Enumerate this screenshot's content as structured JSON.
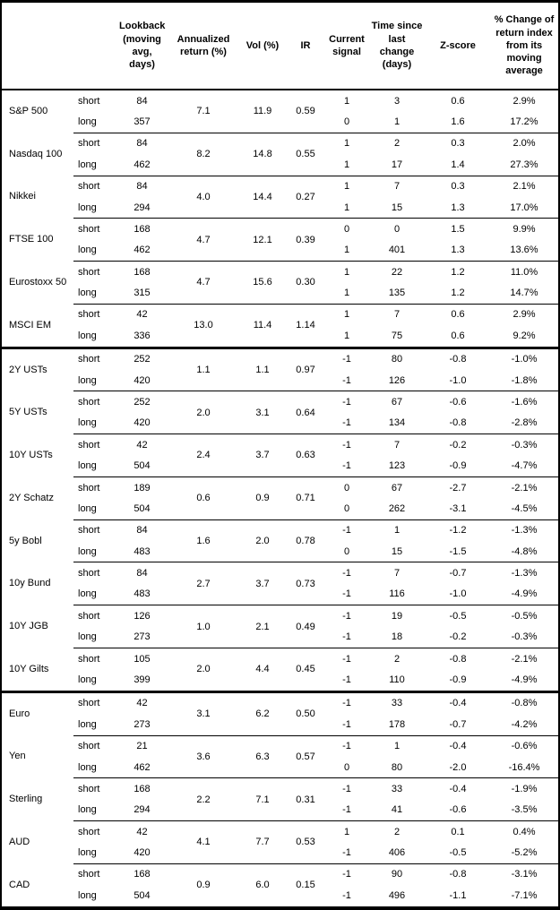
{
  "colors": {
    "background": "#ffffff",
    "text": "#000000",
    "border": "#000000"
  },
  "chart_data": {
    "type": "table",
    "headers": [
      "",
      "",
      "Lookback (moving avg, days)",
      "Annualized return (%)",
      "Vol (%)",
      "IR",
      "Current signal",
      "Time since last change (days)",
      "Z-score",
      "% Change of return index from its moving average"
    ],
    "horizon_labels": {
      "short": "short",
      "long": "long"
    },
    "sections": [
      {
        "assets": [
          {
            "name": "S&P 500",
            "annualized": "7.1",
            "vol": "11.9",
            "ir": "0.59",
            "short": {
              "lookback": "84",
              "signal": "1",
              "time": "3",
              "zscore": "0.6",
              "pct": "2.9%"
            },
            "long": {
              "lookback": "357",
              "signal": "0",
              "time": "1",
              "zscore": "1.6",
              "pct": "17.2%"
            }
          },
          {
            "name": "Nasdaq 100",
            "annualized": "8.2",
            "vol": "14.8",
            "ir": "0.55",
            "short": {
              "lookback": "84",
              "signal": "1",
              "time": "2",
              "zscore": "0.3",
              "pct": "2.0%"
            },
            "long": {
              "lookback": "462",
              "signal": "1",
              "time": "17",
              "zscore": "1.4",
              "pct": "27.3%"
            }
          },
          {
            "name": "Nikkei",
            "annualized": "4.0",
            "vol": "14.4",
            "ir": "0.27",
            "short": {
              "lookback": "84",
              "signal": "1",
              "time": "7",
              "zscore": "0.3",
              "pct": "2.1%"
            },
            "long": {
              "lookback": "294",
              "signal": "1",
              "time": "15",
              "zscore": "1.3",
              "pct": "17.0%"
            }
          },
          {
            "name": "FTSE 100",
            "annualized": "4.7",
            "vol": "12.1",
            "ir": "0.39",
            "short": {
              "lookback": "168",
              "signal": "0",
              "time": "0",
              "zscore": "1.5",
              "pct": "9.9%"
            },
            "long": {
              "lookback": "462",
              "signal": "1",
              "time": "401",
              "zscore": "1.3",
              "pct": "13.6%"
            }
          },
          {
            "name": "Eurostoxx 50",
            "annualized": "4.7",
            "vol": "15.6",
            "ir": "0.30",
            "short": {
              "lookback": "168",
              "signal": "1",
              "time": "22",
              "zscore": "1.2",
              "pct": "11.0%"
            },
            "long": {
              "lookback": "315",
              "signal": "1",
              "time": "135",
              "zscore": "1.2",
              "pct": "14.7%"
            }
          },
          {
            "name": "MSCI EM",
            "annualized": "13.0",
            "vol": "11.4",
            "ir": "1.14",
            "short": {
              "lookback": "42",
              "signal": "1",
              "time": "7",
              "zscore": "0.6",
              "pct": "2.9%"
            },
            "long": {
              "lookback": "336",
              "signal": "1",
              "time": "75",
              "zscore": "0.6",
              "pct": "9.2%"
            }
          }
        ]
      },
      {
        "assets": [
          {
            "name": "2Y USTs",
            "annualized": "1.1",
            "vol": "1.1",
            "ir": "0.97",
            "short": {
              "lookback": "252",
              "signal": "-1",
              "time": "80",
              "zscore": "-0.8",
              "pct": "-1.0%"
            },
            "long": {
              "lookback": "420",
              "signal": "-1",
              "time": "126",
              "zscore": "-1.0",
              "pct": "-1.8%"
            }
          },
          {
            "name": "5Y USTs",
            "annualized": "2.0",
            "vol": "3.1",
            "ir": "0.64",
            "short": {
              "lookback": "252",
              "signal": "-1",
              "time": "67",
              "zscore": "-0.6",
              "pct": "-1.6%"
            },
            "long": {
              "lookback": "420",
              "signal": "-1",
              "time": "134",
              "zscore": "-0.8",
              "pct": "-2.8%"
            }
          },
          {
            "name": "10Y USTs",
            "annualized": "2.4",
            "vol": "3.7",
            "ir": "0.63",
            "short": {
              "lookback": "42",
              "signal": "-1",
              "time": "7",
              "zscore": "-0.2",
              "pct": "-0.3%"
            },
            "long": {
              "lookback": "504",
              "signal": "-1",
              "time": "123",
              "zscore": "-0.9",
              "pct": "-4.7%"
            }
          },
          {
            "name": "2Y Schatz",
            "annualized": "0.6",
            "vol": "0.9",
            "ir": "0.71",
            "short": {
              "lookback": "189",
              "signal": "0",
              "time": "67",
              "zscore": "-2.7",
              "pct": "-2.1%"
            },
            "long": {
              "lookback": "504",
              "signal": "0",
              "time": "262",
              "zscore": "-3.1",
              "pct": "-4.5%"
            }
          },
          {
            "name": "5y Bobl",
            "annualized": "1.6",
            "vol": "2.0",
            "ir": "0.78",
            "short": {
              "lookback": "84",
              "signal": "-1",
              "time": "1",
              "zscore": "-1.2",
              "pct": "-1.3%"
            },
            "long": {
              "lookback": "483",
              "signal": "0",
              "time": "15",
              "zscore": "-1.5",
              "pct": "-4.8%"
            }
          },
          {
            "name": "10y Bund",
            "annualized": "2.7",
            "vol": "3.7",
            "ir": "0.73",
            "short": {
              "lookback": "84",
              "signal": "-1",
              "time": "7",
              "zscore": "-0.7",
              "pct": "-1.3%"
            },
            "long": {
              "lookback": "483",
              "signal": "-1",
              "time": "116",
              "zscore": "-1.0",
              "pct": "-4.9%"
            }
          },
          {
            "name": "10Y JGB",
            "annualized": "1.0",
            "vol": "2.1",
            "ir": "0.49",
            "short": {
              "lookback": "126",
              "signal": "-1",
              "time": "19",
              "zscore": "-0.5",
              "pct": "-0.5%"
            },
            "long": {
              "lookback": "273",
              "signal": "-1",
              "time": "18",
              "zscore": "-0.2",
              "pct": "-0.3%"
            }
          },
          {
            "name": "10Y Gilts",
            "annualized": "2.0",
            "vol": "4.4",
            "ir": "0.45",
            "short": {
              "lookback": "105",
              "signal": "-1",
              "time": "2",
              "zscore": "-0.8",
              "pct": "-2.1%"
            },
            "long": {
              "lookback": "399",
              "signal": "-1",
              "time": "110",
              "zscore": "-0.9",
              "pct": "-4.9%"
            }
          }
        ]
      },
      {
        "assets": [
          {
            "name": "Euro",
            "annualized": "3.1",
            "vol": "6.2",
            "ir": "0.50",
            "short": {
              "lookback": "42",
              "signal": "-1",
              "time": "33",
              "zscore": "-0.4",
              "pct": "-0.8%"
            },
            "long": {
              "lookback": "273",
              "signal": "-1",
              "time": "178",
              "zscore": "-0.7",
              "pct": "-4.2%"
            }
          },
          {
            "name": "Yen",
            "annualized": "3.6",
            "vol": "6.3",
            "ir": "0.57",
            "short": {
              "lookback": "21",
              "signal": "-1",
              "time": "1",
              "zscore": "-0.4",
              "pct": "-0.6%"
            },
            "long": {
              "lookback": "462",
              "signal": "0",
              "time": "80",
              "zscore": "-2.0",
              "pct": "-16.4%"
            }
          },
          {
            "name": "Sterling",
            "annualized": "2.2",
            "vol": "7.1",
            "ir": "0.31",
            "short": {
              "lookback": "168",
              "signal": "-1",
              "time": "33",
              "zscore": "-0.4",
              "pct": "-1.9%"
            },
            "long": {
              "lookback": "294",
              "signal": "-1",
              "time": "41",
              "zscore": "-0.6",
              "pct": "-3.5%"
            }
          },
          {
            "name": "AUD",
            "annualized": "4.1",
            "vol": "7.7",
            "ir": "0.53",
            "short": {
              "lookback": "42",
              "signal": "1",
              "time": "2",
              "zscore": "0.1",
              "pct": "0.4%"
            },
            "long": {
              "lookback": "420",
              "signal": "-1",
              "time": "406",
              "zscore": "-0.5",
              "pct": "-5.2%"
            }
          },
          {
            "name": "CAD",
            "annualized": "0.9",
            "vol": "6.0",
            "ir": "0.15",
            "short": {
              "lookback": "168",
              "signal": "-1",
              "time": "90",
              "zscore": "-0.8",
              "pct": "-3.1%"
            },
            "long": {
              "lookback": "504",
              "signal": "-1",
              "time": "496",
              "zscore": "-1.1",
              "pct": "-7.1%"
            }
          }
        ]
      }
    ]
  }
}
